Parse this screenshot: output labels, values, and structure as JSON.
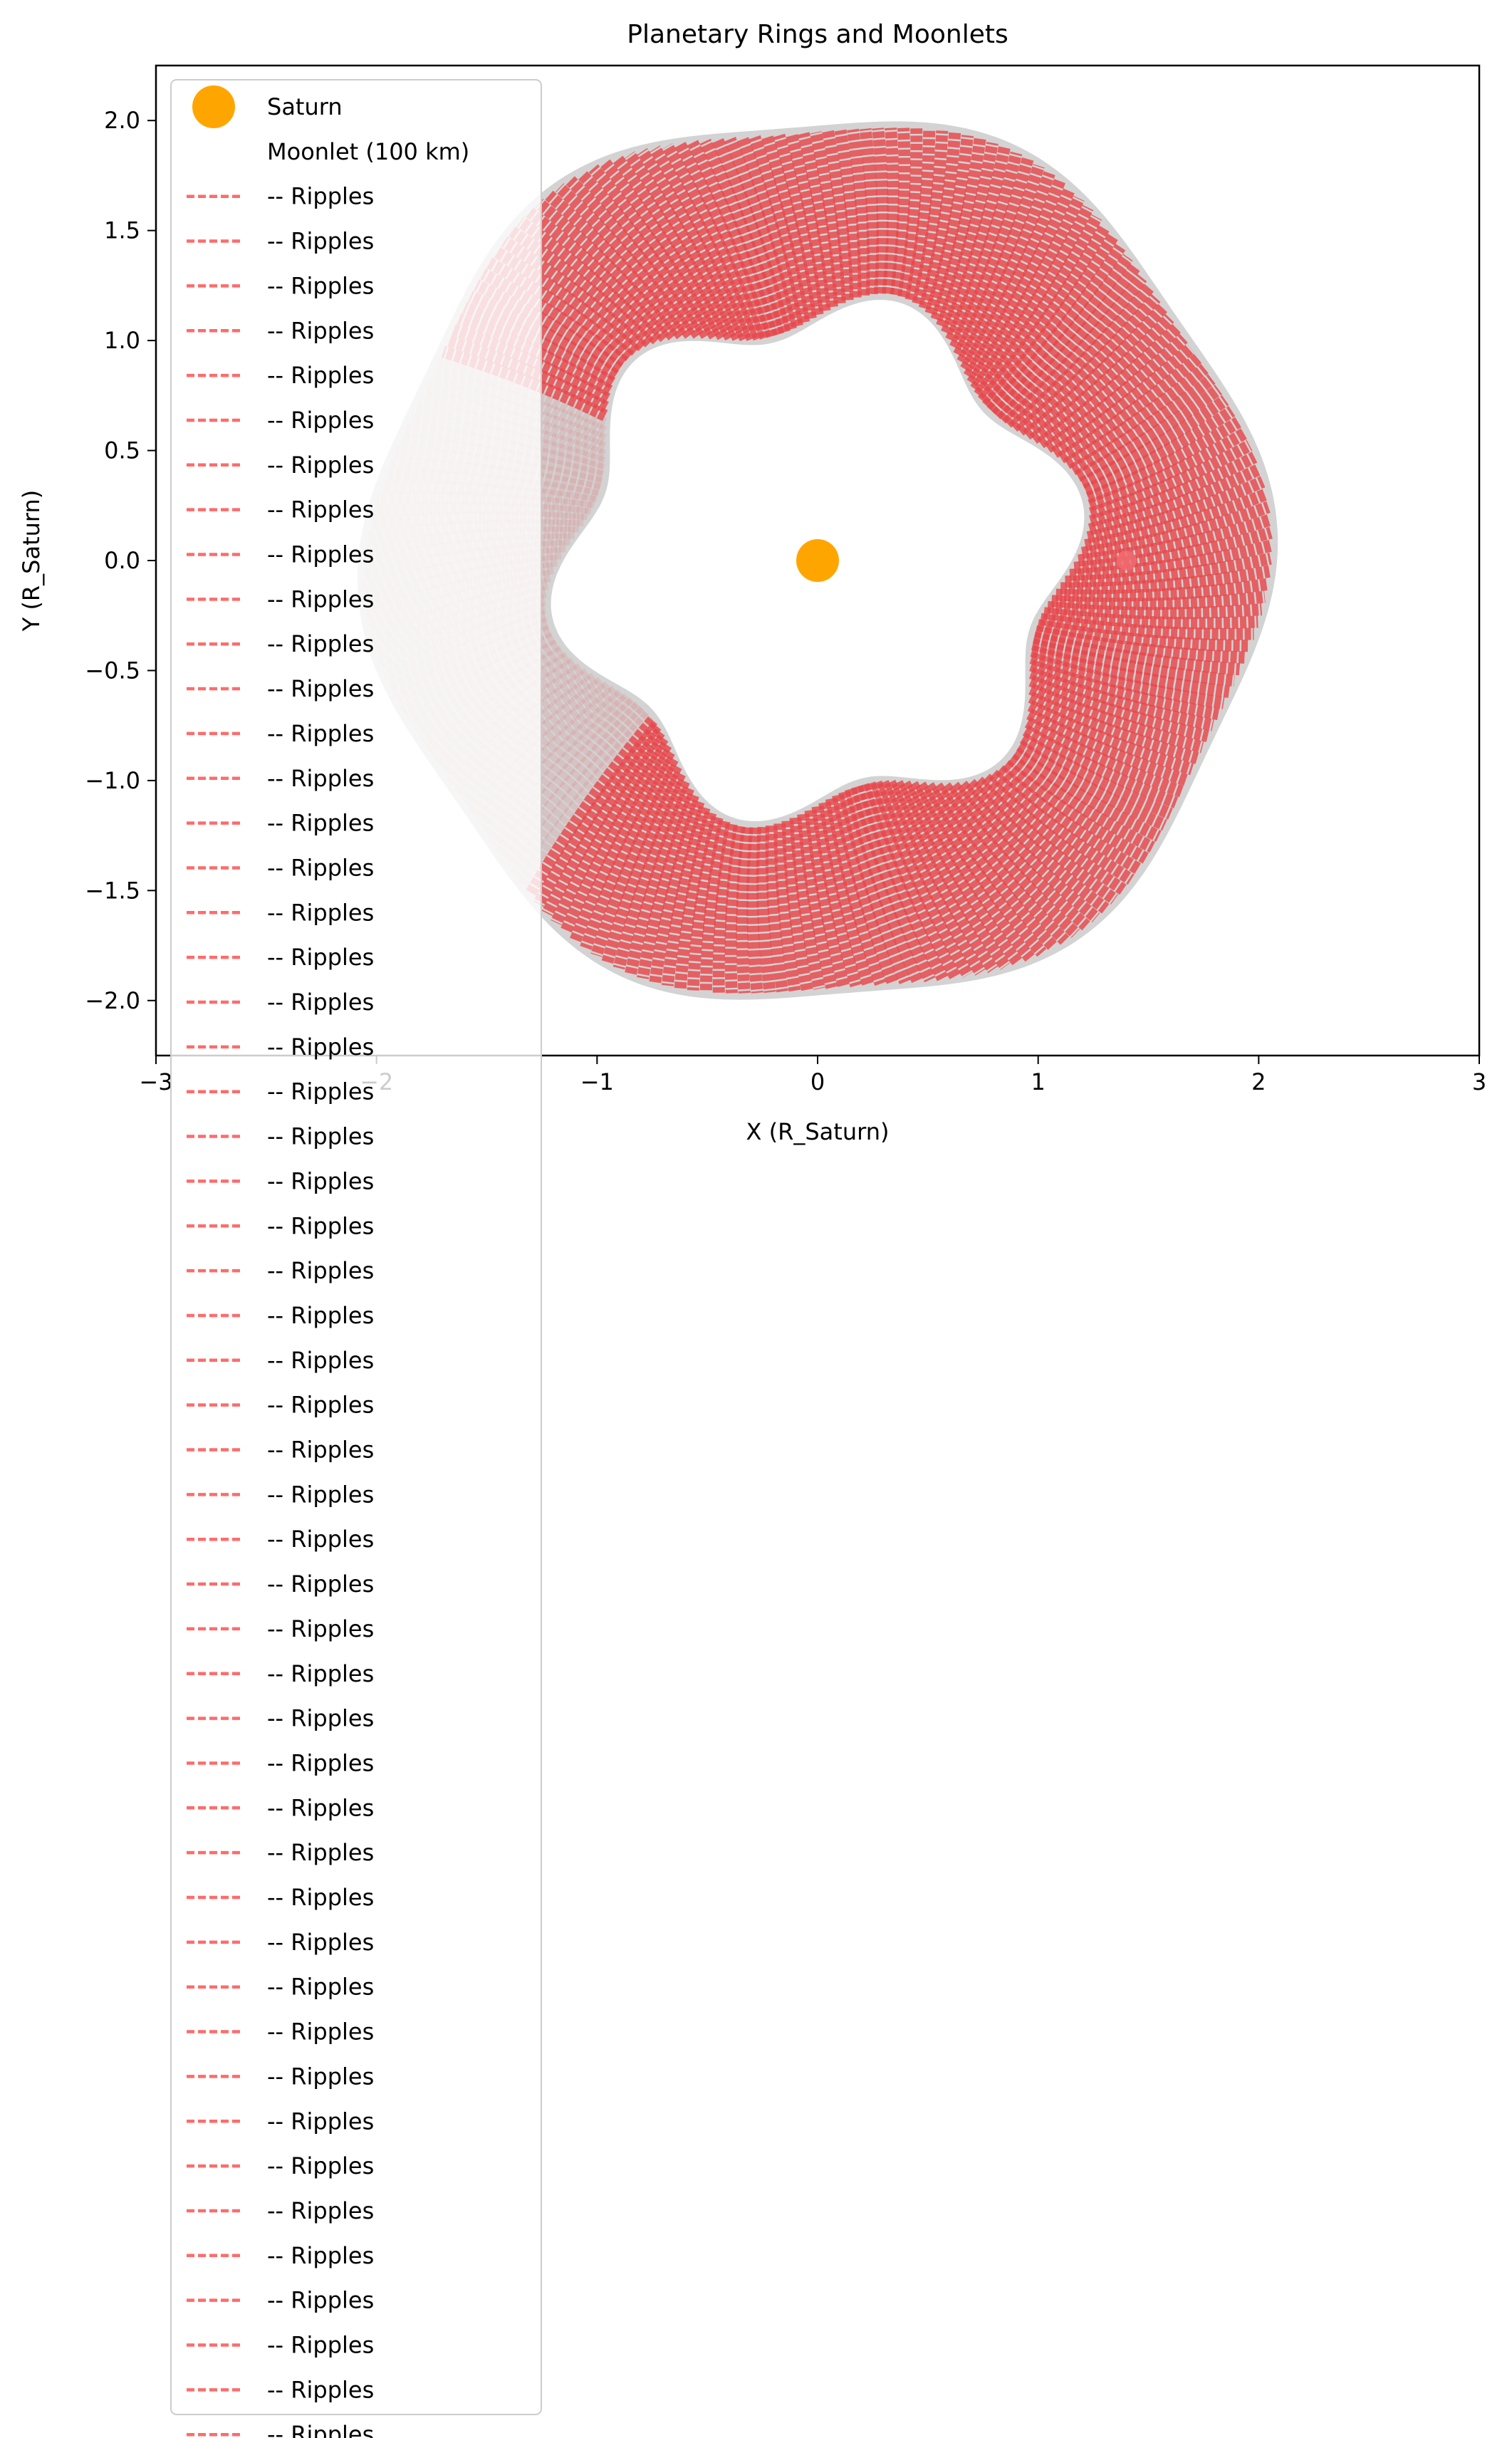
{
  "chart_data": {
    "type": "scatter",
    "title": "Planetary Rings and Moonlets",
    "xlabel": "X (R_Saturn)",
    "ylabel": "Y (R_Saturn)",
    "xlim": [
      -3,
      3
    ],
    "ylim": [
      -2.25,
      2.25
    ],
    "xticks": [
      -3,
      -2,
      -1,
      0,
      1,
      2,
      3
    ],
    "yticks": [
      -2.0,
      -1.5,
      -1.0,
      -0.5,
      0.0,
      0.5,
      1.0,
      1.5,
      2.0
    ],
    "xtick_labels": [
      "−3",
      "−2",
      "−1",
      "0",
      "1",
      "2",
      "3"
    ],
    "ytick_labels": [
      "−2.0",
      "−1.5",
      "−1.0",
      "−0.5",
      "0.0",
      "0.5",
      "1.0",
      "1.5",
      "2.0"
    ],
    "grid": false,
    "legend_placement": "upper-left",
    "ring": {
      "inner_radius": 1.15,
      "outer_radius": 2.0,
      "inner_wave_amplitude": 0.11,
      "outer_wave_amplitude": 0.06,
      "wave_count": 6,
      "color": "#d3d3d3",
      "ripple_color": "#e8474a"
    },
    "series": [
      {
        "name": "Saturn",
        "kind": "point",
        "x": [
          0.0
        ],
        "y": [
          0.0
        ],
        "color": "#ffa500"
      },
      {
        "name": "Moonlet (100 km)",
        "kind": "point",
        "x": [
          1.4
        ],
        "y": [
          0.0
        ],
        "color": "#f06b6e"
      }
    ],
    "ripple_series_label": "-- Ripples",
    "ripple_series_count": 52,
    "ripple_color": "#ff6b6b"
  }
}
